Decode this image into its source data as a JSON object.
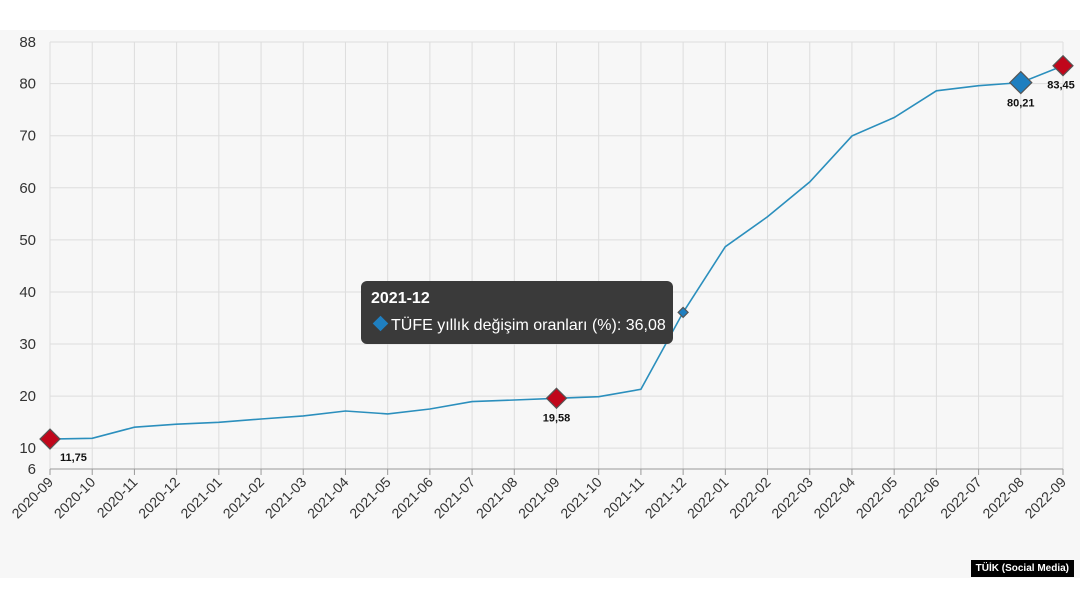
{
  "chart_data": {
    "type": "line",
    "title": "",
    "xlabel": "",
    "ylabel": "",
    "x": [
      "2020-09",
      "2020-10",
      "2020-11",
      "2020-12",
      "2021-01",
      "2021-02",
      "2021-03",
      "2021-04",
      "2021-05",
      "2021-06",
      "2021-07",
      "2021-08",
      "2021-09",
      "2021-10",
      "2021-11",
      "2021-12",
      "2022-01",
      "2022-02",
      "2022-03",
      "2022-04",
      "2022-05",
      "2022-06",
      "2022-07",
      "2022-08",
      "2022-09"
    ],
    "series": [
      {
        "name": "TÜFE yıllık değişim oranları (%)",
        "color": "#2b8fbd",
        "values": [
          11.75,
          11.89,
          14.03,
          14.6,
          14.97,
          15.61,
          16.19,
          17.14,
          16.59,
          17.53,
          18.95,
          19.25,
          19.58,
          19.89,
          21.31,
          36.08,
          48.69,
          54.44,
          61.14,
          69.97,
          73.5,
          78.62,
          79.6,
          80.21,
          83.45
        ]
      }
    ],
    "y_ticks": [
      6,
      10,
      20,
      30,
      40,
      50,
      60,
      70,
      80,
      88
    ],
    "ylim": [
      6,
      88
    ],
    "grid": true,
    "legend": "none",
    "highlighted_points": [
      {
        "x": "2020-09",
        "label": "11,75"
      },
      {
        "x": "2021-09",
        "label": "19,58"
      },
      {
        "x": "2022-08",
        "label": "80,21"
      },
      {
        "x": "2022-09",
        "label": "83,45"
      }
    ]
  },
  "tooltip": {
    "title": "2021-12",
    "row_text": "TÜFE yıllık değişim oranları (%): 36,08"
  },
  "source_label": "TÜİK (Social Media)",
  "colors": {
    "line": "#2b8fbd",
    "marker_red": "#c0071b",
    "marker_blue": "#1f7fc0",
    "grid": "#dddddd",
    "tooltip_bg": "#3a3a3a"
  }
}
